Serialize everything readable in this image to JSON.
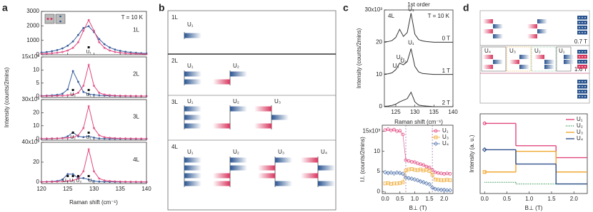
{
  "panels": [
    "a",
    "b",
    "c",
    "d"
  ],
  "diagram_b": {
    "layers": [
      "1L",
      "2L",
      "3L",
      "4L"
    ],
    "modes": [
      [
        "U₁"
      ],
      [
        "U₁",
        "U₂"
      ],
      [
        "U₁",
        "U₂",
        "U₃"
      ],
      [
        "U₁",
        "U₂",
        "U₃",
        "U₄"
      ]
    ]
  },
  "diagram_d": {
    "fields": [
      "0.7 T",
      "1.6 T"
    ],
    "modes": [
      "U₄",
      "U₃",
      "U₂",
      "U₁"
    ]
  },
  "chart_data": [
    {
      "type": "line",
      "label": "1L",
      "annotation": "T = 10 K",
      "ylabel": "Intensity (counts/2mins)",
      "x": [
        120,
        121,
        122,
        123,
        124,
        125,
        126,
        127,
        128,
        129,
        130,
        131,
        132,
        133,
        134,
        135,
        136,
        137,
        138,
        139,
        140
      ],
      "xlim": [
        120,
        140
      ],
      "xticks": [
        120,
        125,
        130,
        135,
        140
      ],
      "ylim": [
        0,
        3000
      ],
      "yticks": [
        0,
        1000,
        2000,
        3000
      ],
      "series": [
        {
          "color": "#3a5f9c",
          "values": [
            153,
            190,
            245,
            323,
            441,
            627,
            922,
            1370,
            1852,
            1972,
            1575,
            1081,
            730,
            505,
            364,
            272,
            210,
            167,
            135,
            111,
            93
          ]
        },
        {
          "color": "#e0467e",
          "values": [
            65,
            82,
            105,
            141,
            198,
            296,
            480,
            864,
            1662,
            2400,
            1662,
            864,
            480,
            296,
            198,
            141,
            105,
            82,
            65,
            53,
            44
          ]
        }
      ],
      "peaks": [
        {
          "label": "U₁",
          "x": 129
        }
      ]
    },
    {
      "type": "line",
      "label": "2L",
      "x": [
        120,
        121,
        122,
        123,
        124,
        125,
        126,
        127,
        128,
        129,
        130,
        131,
        132,
        133,
        134,
        135,
        136,
        137,
        138,
        139,
        140
      ],
      "xlim": [
        120,
        140
      ],
      "xticks": [
        120,
        125,
        130,
        135,
        140
      ],
      "ylim": [
        -0.5,
        15
      ],
      "yticks": [
        0,
        5,
        10,
        {
          "value": 15,
          "label": "15x10³"
        }
      ],
      "series": [
        {
          "color": "#3a5f9c",
          "values": [
            0.15,
            0.21,
            0.31,
            0.5,
            0.93,
            2.6,
            9.6,
            5.5,
            1.6,
            0.8,
            0.5,
            0.31,
            0.21,
            0.15,
            0.11,
            0.09,
            0.07,
            0.06,
            0.05,
            0.04,
            0.03
          ]
        },
        {
          "color": "#e0467e",
          "values": [
            0.07,
            0.09,
            0.12,
            0.16,
            0.23,
            0.36,
            0.6,
            1.28,
            3.94,
            12,
            3.94,
            1.28,
            0.6,
            0.36,
            0.23,
            0.16,
            0.12,
            0.09,
            0.07,
            0.06,
            0.05
          ]
        }
      ],
      "peaks": [
        {
          "label": "U₂",
          "x": 126
        },
        {
          "label": "U₁",
          "x": 129
        }
      ]
    },
    {
      "type": "line",
      "label": "3L",
      "x": [
        120,
        121,
        122,
        123,
        124,
        125,
        126,
        127,
        128,
        129,
        130,
        131,
        132,
        133,
        134,
        135,
        136,
        137,
        138,
        139,
        140
      ],
      "xlim": [
        120,
        140
      ],
      "xticks": [
        120,
        125,
        130,
        135,
        140
      ],
      "ylim": [
        -1,
        30
      ],
      "yticks": [
        0,
        10,
        20,
        {
          "value": 30,
          "label": "30x10³"
        }
      ],
      "series": [
        {
          "color": "#3a5f9c",
          "values": [
            0.1,
            0.12,
            0.2,
            0.3,
            0.6,
            1.9,
            5,
            1.9,
            1.3,
            2,
            0.9,
            0.3,
            0.2,
            0.1,
            0.1,
            0.08,
            0.06,
            0.05,
            0.05,
            0.04,
            0.04
          ]
        },
        {
          "color": "#e0467e",
          "values": [
            0.15,
            0.19,
            0.25,
            0.33,
            0.48,
            0.75,
            1.25,
            2.67,
            8.2,
            25,
            8.2,
            2.67,
            1.25,
            0.75,
            0.48,
            0.33,
            0.25,
            0.19,
            0.15,
            0.12,
            0.1
          ]
        }
      ],
      "peaks": [
        {
          "label": "U₂",
          "x": 126
        },
        {
          "label": "U₁",
          "x": 129
        }
      ]
    },
    {
      "type": "line",
      "label": "4L",
      "xlabel": "Raman shift (cm⁻¹)",
      "x": [
        120,
        121,
        122,
        123,
        124,
        125,
        126,
        127,
        128,
        129,
        130,
        131,
        132,
        133,
        134,
        135,
        136,
        137,
        138,
        139,
        140
      ],
      "xlim": [
        120,
        140
      ],
      "xticks": [
        120,
        125,
        130,
        135,
        140
      ],
      "ylim": [
        -1.5,
        40
      ],
      "yticks": [
        0,
        20,
        {
          "value": 40,
          "label": "40x10³"
        }
      ],
      "series": [
        {
          "color": "#3a5f9c",
          "values": [
            0.3,
            0.4,
            0.6,
            1,
            2.5,
            8,
            8,
            4,
            4,
            2.5,
            1,
            0.5,
            0.3,
            0.2,
            0.15,
            0.1,
            0.1,
            0.08,
            0.07,
            0.06,
            0.05
          ]
        },
        {
          "color": "#e0467e",
          "values": [
            0.19,
            0.25,
            0.33,
            0.44,
            0.63,
            1,
            1.65,
            3.5,
            10.8,
            33,
            10.8,
            3.5,
            1.65,
            1,
            0.63,
            0.44,
            0.33,
            0.25,
            0.19,
            0.17,
            0.14
          ]
        }
      ],
      "peaks": [
        {
          "label": "U₄",
          "x": 125
        },
        {
          "label": "U₃",
          "x": 126
        },
        {
          "label": "U₂",
          "x": 127
        },
        {
          "label": "U₁",
          "x": 129
        }
      ]
    },
    {
      "type": "line",
      "title": "1st order",
      "label": "4L",
      "annotation": "T = 10 K",
      "xlabel": "Raman shift (cm⁻¹)",
      "ylabel": "Intensity (counts/2mins)",
      "x": [
        122,
        123,
        124,
        125,
        126,
        127,
        128,
        129,
        130,
        131,
        132,
        133,
        134,
        135,
        136,
        137,
        138,
        139,
        140
      ],
      "xlim": [
        122,
        140
      ],
      "xticks": [
        125,
        130,
        135,
        140
      ],
      "ylim": [
        0,
        30
      ],
      "yticks": [
        0,
        10,
        20,
        {
          "value": 30,
          "label": "30x10³"
        }
      ],
      "series": [
        {
          "name": "0 T",
          "color": "#333333",
          "values": [
            20.1,
            20.2,
            20.5,
            21.5,
            24,
            21.8,
            23,
            29,
            22.5,
            20.8,
            20.4,
            20.2,
            20.1,
            20,
            20,
            20,
            20,
            20,
            20
          ],
          "peaks": [
            {
              "label": "U₁",
              "x": 129
            }
          ]
        },
        {
          "name": "1 T",
          "color": "#333333",
          "values": [
            10.1,
            10.2,
            10.5,
            11.5,
            13.5,
            13,
            14,
            18,
            12.5,
            10.8,
            10.3,
            10.2,
            10.1,
            10,
            10,
            10,
            10,
            10,
            10
          ],
          "peaks": [
            {
              "label": "U₄",
              "x": 125
            },
            {
              "label": "U₃",
              "x": 126
            },
            {
              "label": "U₂",
              "x": 127
            },
            {
              "label": "U₁",
              "x": 129
            }
          ]
        },
        {
          "name": "2 T",
          "color": "#333333",
          "values": [
            0.1,
            0.2,
            0.4,
            0.8,
            1.5,
            2,
            2.5,
            4.5,
            1.5,
            0.5,
            0.3,
            0.2,
            0.1,
            0,
            0,
            0,
            0,
            0,
            0
          ]
        }
      ]
    },
    {
      "type": "line",
      "xlabel": "B⊥ (T)",
      "ylabel": "I.I. (counts/2mins)",
      "legend": "upper right",
      "x": [
        0,
        0.1,
        0.2,
        0.3,
        0.4,
        0.5,
        0.6,
        0.7,
        0.8,
        0.9,
        1,
        1.1,
        1.2,
        1.3,
        1.4,
        1.5,
        1.6,
        1.7,
        1.8,
        1.9,
        2,
        2.1,
        2.2
      ],
      "xlim": [
        -0.1,
        2.3
      ],
      "xticks": [
        {
          "value": 0,
          "label": "0.0"
        },
        0.5,
        {
          "value": 1,
          "label": "1.0"
        },
        1.5,
        {
          "value": 2,
          "label": "2.0"
        }
      ],
      "ylim": [
        -0.5,
        16.5
      ],
      "yticks": [
        0,
        5,
        10,
        {
          "value": 15,
          "label": "15x10³"
        }
      ],
      "vlines": [
        0.7,
        1.6
      ],
      "series": [
        {
          "name": "U₁",
          "color": "#e0467e",
          "marker": "circle",
          "values": [
            15.3,
            15.5,
            15.2,
            15.4,
            15.0,
            15.1,
            14.2,
            7.8,
            7.6,
            7.4,
            7.3,
            7.0,
            6.8,
            6.6,
            6.2,
            6.0,
            5.4,
            4.8,
            4.6,
            4.5,
            4.4,
            4.5,
            4.4
          ]
        },
        {
          "name": "U₃",
          "color": "#f0a830",
          "marker": "square",
          "values": [
            2,
            2.1,
            1.9,
            2,
            2,
            2.1,
            2.3,
            5.2,
            5.5,
            5.6,
            5.4,
            5.3,
            5.5,
            5.2,
            5.4,
            5.1,
            4.2,
            3,
            2.9,
            2.8,
            2.8,
            2.9,
            2.8
          ]
        },
        {
          "name": "U₄",
          "color": "#5a7bb0",
          "marker": "diamond",
          "values": [
            4.8,
            4.6,
            4.7,
            4.5,
            4.7,
            4.6,
            4.4,
            3.5,
            3.3,
            3.2,
            3.0,
            2.8,
            2.5,
            2.3,
            2.0,
            1.8,
            1.0,
            0.6,
            0.5,
            0.4,
            0.4,
            0.3,
            0.3
          ]
        }
      ]
    },
    {
      "type": "step",
      "xlabel": "B⊥ (T)",
      "ylabel": "Intensity (a. u.)",
      "legend": "upper right",
      "x": [
        0,
        0.7,
        1.6
      ],
      "xlim": [
        -0.1,
        2.3
      ],
      "xticks": [
        {
          "value": 0,
          "label": "0.0"
        },
        0.5,
        {
          "value": 1,
          "label": "1.0"
        },
        1.5,
        {
          "value": 2,
          "label": "2.0"
        }
      ],
      "ylim": [
        0,
        1
      ],
      "series": [
        {
          "name": "U₁",
          "color": "#e0467e",
          "marker": "circle",
          "values": [
            0.88,
            0.6,
            0.45
          ]
        },
        {
          "name": "U₂",
          "color": "#3a9a5a",
          "dash": "dotted",
          "values": [
            0.14,
            0.12,
            0.12
          ]
        },
        {
          "name": "U₃",
          "color": "#f0a830",
          "marker": "square",
          "values": [
            0.27,
            0.53,
            0.27
          ]
        },
        {
          "name": "U₄",
          "color": "#2f4f8a",
          "marker": "diamond",
          "values": [
            0.55,
            0.37,
            0.12
          ]
        }
      ]
    }
  ]
}
